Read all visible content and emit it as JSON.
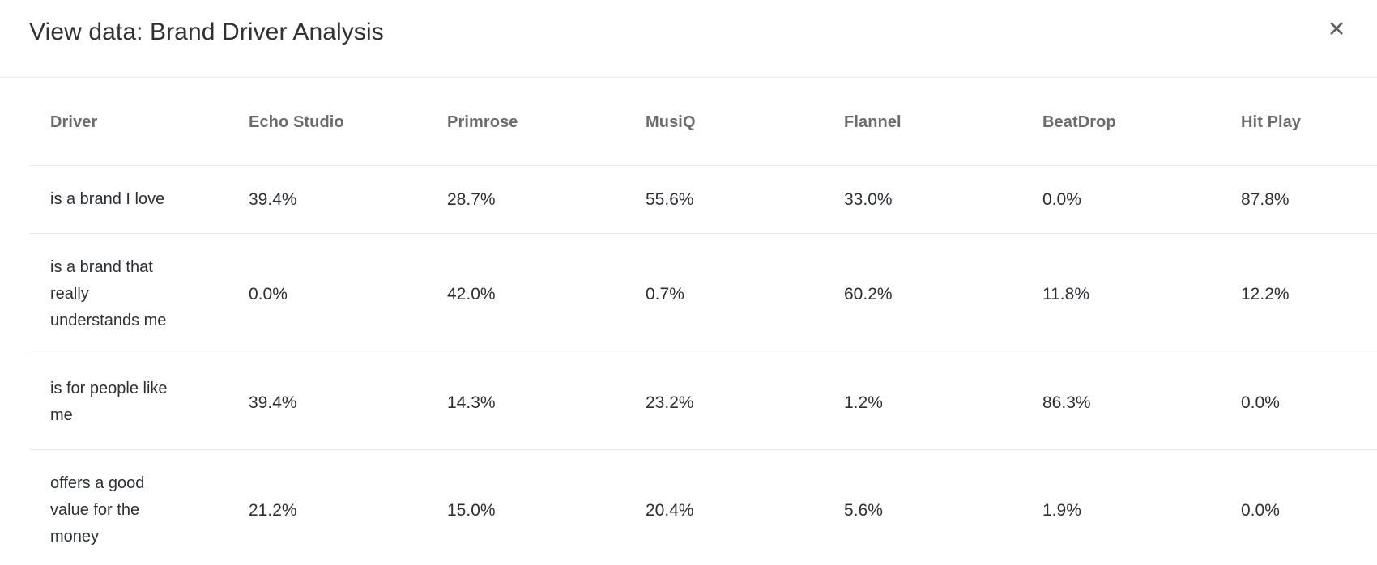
{
  "modal": {
    "title": "View data: Brand Driver Analysis",
    "close_icon": "✕"
  },
  "table": {
    "columns": [
      "Driver",
      "Echo Studio",
      "Primrose",
      "MusiQ",
      "Flannel",
      "BeatDrop",
      "Hit Play"
    ],
    "rows": [
      {
        "driver": "is a brand I love",
        "values": [
          "39.4%",
          "28.7%",
          "55.6%",
          "33.0%",
          "0.0%",
          "87.8%"
        ]
      },
      {
        "driver": "is a brand that\nreally\nunderstands me",
        "values": [
          "0.0%",
          "42.0%",
          "0.7%",
          "60.2%",
          "11.8%",
          "12.2%"
        ]
      },
      {
        "driver": "is for people like\nme",
        "values": [
          "39.4%",
          "14.3%",
          "23.2%",
          "1.2%",
          "86.3%",
          "0.0%"
        ]
      },
      {
        "driver": "offers a good\nvalue for the\nmoney",
        "values": [
          "21.2%",
          "15.0%",
          "20.4%",
          "5.6%",
          "1.9%",
          "0.0%"
        ]
      }
    ]
  },
  "colors": {
    "title_text": "#2e3136",
    "header_text": "#6c6c6c",
    "body_text": "#2c2f33",
    "divider": "#e7e7e7",
    "close_icon": "#5c6066",
    "background": "#ffffff"
  }
}
